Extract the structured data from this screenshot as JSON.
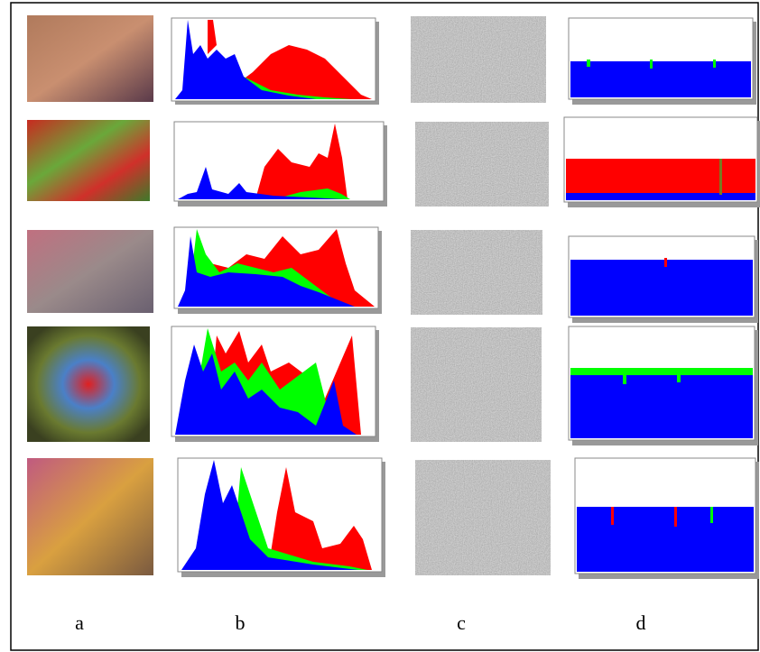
{
  "figure": {
    "column_labels": [
      "a",
      "b",
      "c",
      "d"
    ]
  }
}
